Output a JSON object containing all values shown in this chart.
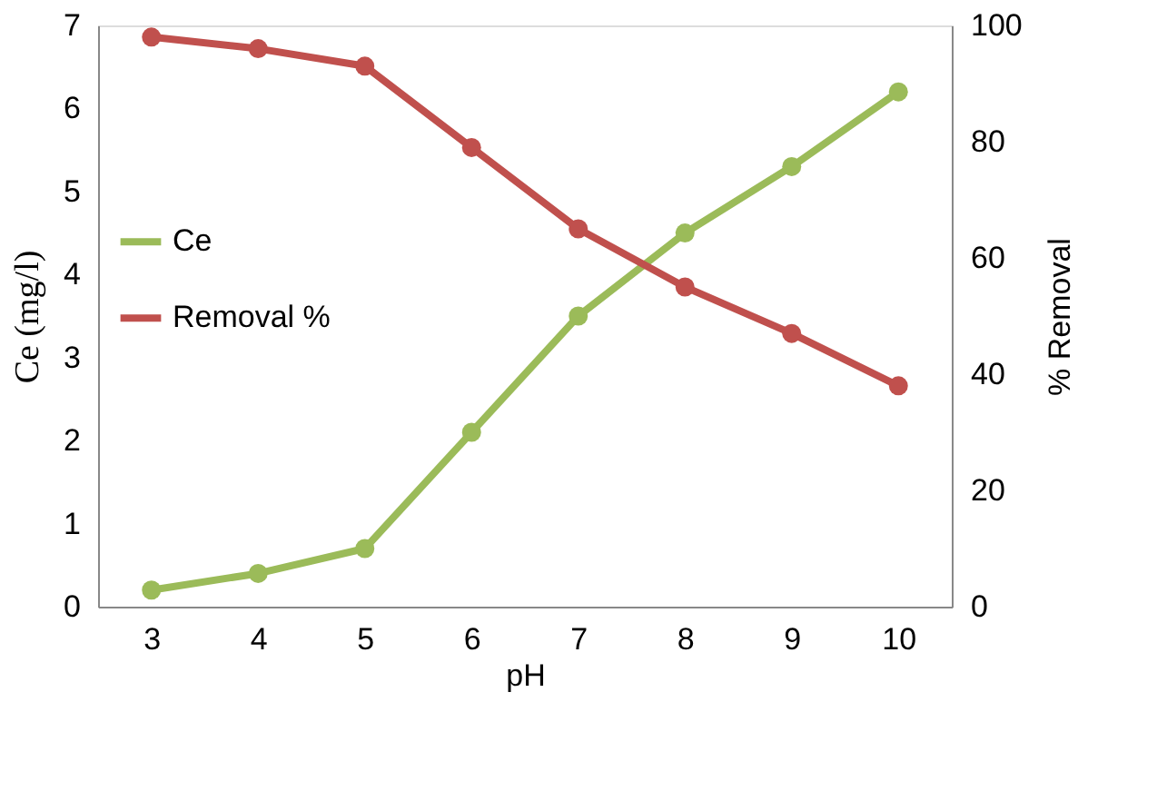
{
  "chart_data": {
    "type": "line",
    "xlabel": "pH",
    "ylabel": "Ce (mg/l)",
    "y2label": "% Removal",
    "categories": [
      "3",
      "4",
      "5",
      "6",
      "7",
      "8",
      "9",
      "10"
    ],
    "series": [
      {
        "name": "Ce",
        "color": "#9bbb59",
        "values": [
          0.2,
          0.4,
          0.7,
          2.1,
          3.5,
          4.5,
          5.3,
          6.2
        ]
      },
      {
        "name": "Removal %",
        "color": "#c0504d",
        "axis": "y2",
        "values": [
          98,
          96,
          93,
          79,
          65,
          55,
          47,
          38
        ]
      }
    ],
    "ylim": [
      0,
      7
    ],
    "yticks": [
      0,
      1,
      2,
      3,
      4,
      5,
      6,
      7
    ],
    "y2lim": [
      0,
      100
    ],
    "y2ticks": [
      0,
      20,
      40,
      60,
      80,
      100
    ],
    "marker": "circle",
    "line_style": "solid",
    "legend": "left",
    "grid": false
  }
}
